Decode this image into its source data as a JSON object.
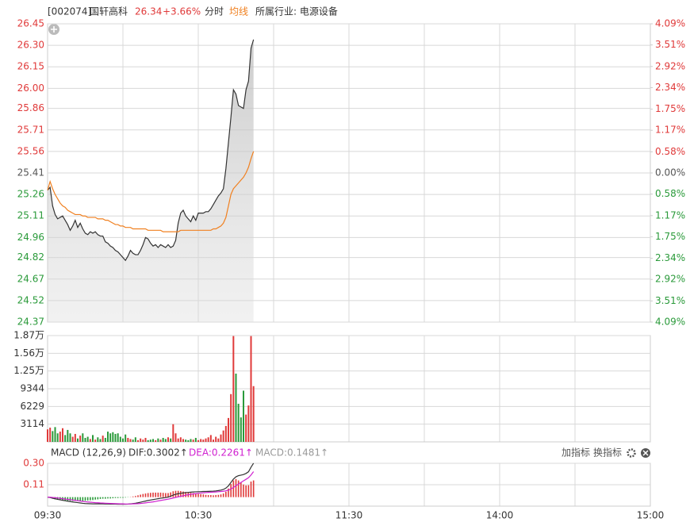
{
  "header": {
    "code": "[002074]",
    "name": "国轩高科",
    "price": 26.34,
    "change": "+3.66%",
    "industry": "所属行业: 电源设备"
  },
  "toolbar": [
    "加指标",
    "换指标"
  ],
  "chart_data": [
    {
      "type": "line",
      "xlim": [
        0,
        240
      ],
      "xticks": [
        {
          "value": 0,
          "label": "09:30"
        },
        {
          "value": 30,
          "label": null
        },
        {
          "value": 60,
          "label": "10:30"
        },
        {
          "value": 90,
          "label": null
        },
        {
          "value": 120,
          "label": "11:30"
        },
        {
          "value": 150,
          "label": null
        },
        {
          "value": 180,
          "label": "14:00"
        },
        {
          "value": 210,
          "label": null
        },
        {
          "value": 240,
          "label": "15:00"
        }
      ],
      "ylim": [
        24.37,
        26.45
      ],
      "yticks": [
        26.45,
        {
          "value": 26.3,
          "label": "26.30"
        },
        26.15,
        {
          "value": 26.0,
          "label": "26.00"
        },
        25.86,
        25.71,
        25.56,
        25.41,
        25.26,
        25.11,
        24.96,
        24.82,
        24.67,
        24.52,
        24.37
      ],
      "y2lim": [
        -4.09,
        4.09
      ],
      "y2ticks": [
        {
          "value": 4.09,
          "label": "4.09%"
        },
        {
          "value": 3.51,
          "label": "3.51%"
        },
        {
          "value": 2.92,
          "label": "2.92%"
        },
        {
          "value": 2.34,
          "label": "2.34%"
        },
        {
          "value": 1.75,
          "label": "1.75%"
        },
        {
          "value": 1.17,
          "label": "1.17%"
        },
        {
          "value": 0.58,
          "label": "0.58%"
        },
        {
          "value": 0,
          "label": "0.00%"
        },
        {
          "value": -0.58,
          "label": "0.58%"
        },
        {
          "value": -1.17,
          "label": "1.17%"
        },
        {
          "value": -1.75,
          "label": "1.75%"
        },
        {
          "value": -2.34,
          "label": "2.34%"
        },
        {
          "value": -2.92,
          "label": "2.92%"
        },
        {
          "value": -3.51,
          "label": "3.51%"
        },
        {
          "value": -4.09,
          "label": "4.09%"
        }
      ],
      "up_color": "#e03a3a",
      "down_color": "#2a9a3a",
      "flat_color": "#555555",
      "x": [
        0,
        1,
        2,
        3,
        4,
        5,
        6,
        7,
        8,
        9,
        10,
        11,
        12,
        13,
        14,
        15,
        16,
        17,
        18,
        19,
        20,
        21,
        22,
        23,
        24,
        25,
        26,
        27,
        28,
        29,
        30,
        31,
        32,
        33,
        34,
        35,
        36,
        37,
        38,
        39,
        40,
        41,
        42,
        43,
        44,
        45,
        46,
        47,
        48,
        49,
        50,
        51,
        52,
        53,
        54,
        55,
        56,
        57,
        58,
        59,
        60,
        61,
        62,
        63,
        64,
        65,
        66,
        67,
        68,
        69,
        70,
        71,
        72,
        73,
        74,
        75,
        76,
        77,
        78,
        79,
        80,
        81,
        82
      ],
      "series": [
        {
          "name": "分时",
          "color": "#333333",
          "values": [
            25.29,
            25.31,
            25.18,
            25.12,
            25.09,
            25.1,
            25.11,
            25.08,
            25.05,
            25.01,
            25.04,
            25.08,
            25.03,
            25.06,
            25.02,
            24.99,
            24.98,
            25.0,
            24.99,
            25.0,
            24.98,
            24.97,
            24.97,
            24.93,
            24.92,
            24.9,
            24.89,
            24.87,
            24.86,
            24.84,
            24.82,
            24.8,
            24.83,
            24.87,
            24.85,
            24.84,
            24.84,
            24.87,
            24.91,
            24.96,
            24.95,
            24.92,
            24.9,
            24.91,
            24.89,
            24.91,
            24.9,
            24.89,
            24.91,
            24.89,
            24.9,
            24.94,
            25.06,
            25.13,
            25.15,
            25.11,
            25.09,
            25.07,
            25.11,
            25.08,
            25.13,
            25.13,
            25.13,
            25.14,
            25.14,
            25.16,
            25.19,
            25.22,
            25.25,
            25.27,
            25.3,
            25.44,
            25.62,
            25.8,
            25.99,
            25.96,
            25.88,
            25.87,
            25.86,
            25.99,
            26.05,
            26.28,
            26.34
          ]
        },
        {
          "name": "均线",
          "color": "#f08020",
          "values": [
            25.29,
            25.35,
            25.3,
            25.26,
            25.23,
            25.2,
            25.18,
            25.17,
            25.15,
            25.14,
            25.13,
            25.12,
            25.12,
            25.12,
            25.11,
            25.11,
            25.1,
            25.1,
            25.1,
            25.1,
            25.09,
            25.09,
            25.09,
            25.08,
            25.08,
            25.07,
            25.06,
            25.05,
            25.05,
            25.04,
            25.04,
            25.03,
            25.03,
            25.03,
            25.02,
            25.02,
            25.02,
            25.02,
            25.02,
            25.02,
            25.01,
            25.01,
            25.01,
            25.01,
            25.01,
            25.01,
            25.0,
            25.0,
            25.0,
            25.0,
            25.0,
            25.0,
            25.0,
            25.01,
            25.01,
            25.01,
            25.01,
            25.01,
            25.01,
            25.01,
            25.01,
            25.01,
            25.01,
            25.01,
            25.01,
            25.01,
            25.02,
            25.02,
            25.03,
            25.04,
            25.06,
            25.1,
            25.18,
            25.26,
            25.3,
            25.32,
            25.34,
            25.36,
            25.38,
            25.41,
            25.45,
            25.51,
            25.56
          ]
        }
      ]
    },
    {
      "type": "bar",
      "ylim": [
        0,
        18686
      ],
      "yticks": [
        {
          "value": 18686,
          "label": "1.87万"
        },
        {
          "value": 15572,
          "label": "1.56万"
        },
        {
          "value": 12458,
          "label": "1.25万"
        },
        9344,
        6229,
        3114
      ],
      "values": [
        2200,
        2500,
        1900,
        2600,
        1500,
        1800,
        2400,
        1200,
        2100,
        1500,
        900,
        1400,
        600,
        1100,
        1500,
        700,
        900,
        500,
        1200,
        400,
        800,
        500,
        1100,
        700,
        1800,
        1500,
        1700,
        1400,
        1500,
        900,
        600,
        1300,
        700,
        500,
        400,
        800,
        300,
        600,
        400,
        700,
        300,
        400,
        500,
        300,
        600,
        400,
        700,
        500,
        800,
        600,
        3100,
        1500,
        600,
        800,
        500,
        400,
        300,
        500,
        400,
        700,
        300,
        500,
        400,
        600,
        800,
        1200,
        400,
        900,
        600,
        1300,
        2000,
        2800,
        4200,
        8400,
        18600,
        12000,
        6700,
        4300,
        9000,
        4800,
        6400,
        18600,
        9800
      ]
    },
    {
      "type": "macd",
      "title": "MACD (12,26,9)",
      "ylim": [
        -0.08,
        0.3
      ],
      "yticks": [
        {
          "value": 0.3,
          "label": "0.30"
        },
        0.11
      ],
      "series": [
        {
          "name": "DIF:0.3002↑",
          "color": "#333333",
          "values": [
            0,
            -0.004,
            -0.01,
            -0.015,
            -0.02,
            -0.024,
            -0.028,
            -0.032,
            -0.036,
            -0.04,
            -0.043,
            -0.046,
            -0.049,
            -0.052,
            -0.055,
            -0.057,
            -0.058,
            -0.059,
            -0.06,
            -0.06,
            -0.06,
            -0.06,
            -0.06,
            -0.061,
            -0.061,
            -0.062,
            -0.062,
            -0.062,
            -0.063,
            -0.063,
            -0.063,
            -0.063,
            -0.062,
            -0.06,
            -0.057,
            -0.054,
            -0.05,
            -0.045,
            -0.04,
            -0.035,
            -0.03,
            -0.026,
            -0.022,
            -0.018,
            -0.014,
            -0.01,
            -0.007,
            -0.004,
            0,
            0.008,
            0.018,
            0.025,
            0.03,
            0.034,
            0.037,
            0.04,
            0.042,
            0.044,
            0.046,
            0.047,
            0.048,
            0.049,
            0.05,
            0.05,
            0.051,
            0.052,
            0.053,
            0.055,
            0.058,
            0.062,
            0.068,
            0.08,
            0.1,
            0.13,
            0.16,
            0.18,
            0.19,
            0.195,
            0.2,
            0.21,
            0.225,
            0.265,
            0.3002
          ]
        },
        {
          "name": "DEA:0.2261↑",
          "color": "#d020d0",
          "values": [
            0,
            -0.001,
            -0.003,
            -0.005,
            -0.008,
            -0.011,
            -0.014,
            -0.017,
            -0.02,
            -0.023,
            -0.026,
            -0.029,
            -0.032,
            -0.035,
            -0.038,
            -0.041,
            -0.043,
            -0.045,
            -0.047,
            -0.049,
            -0.05,
            -0.052,
            -0.053,
            -0.054,
            -0.055,
            -0.056,
            -0.057,
            -0.058,
            -0.059,
            -0.06,
            -0.06,
            -0.061,
            -0.061,
            -0.061,
            -0.06,
            -0.059,
            -0.058,
            -0.056,
            -0.054,
            -0.051,
            -0.048,
            -0.045,
            -0.042,
            -0.038,
            -0.034,
            -0.03,
            -0.026,
            -0.022,
            -0.018,
            -0.013,
            -0.008,
            -0.003,
            0.002,
            0.007,
            0.012,
            0.017,
            0.021,
            0.025,
            0.028,
            0.031,
            0.034,
            0.036,
            0.038,
            0.04,
            0.042,
            0.043,
            0.045,
            0.046,
            0.048,
            0.05,
            0.052,
            0.056,
            0.062,
            0.072,
            0.086,
            0.1,
            0.116,
            0.13,
            0.144,
            0.158,
            0.172,
            0.196,
            0.2261
          ]
        },
        {
          "name": "MACD:0.1481↑",
          "color": "#999999",
          "values": [
            0,
            -0.006,
            -0.014,
            -0.02,
            -0.024,
            -0.026,
            -0.028,
            -0.03,
            -0.032,
            -0.034,
            -0.034,
            -0.034,
            -0.034,
            -0.034,
            -0.034,
            -0.032,
            -0.03,
            -0.028,
            -0.026,
            -0.022,
            -0.02,
            -0.016,
            -0.014,
            -0.014,
            -0.012,
            -0.012,
            -0.01,
            -0.008,
            -0.008,
            -0.006,
            -0.006,
            -0.004,
            -0.002,
            0.002,
            0.006,
            0.01,
            0.016,
            0.022,
            0.028,
            0.032,
            0.036,
            0.038,
            0.04,
            0.04,
            0.04,
            0.04,
            0.038,
            0.036,
            0.036,
            0.042,
            0.052,
            0.056,
            0.056,
            0.054,
            0.05,
            0.046,
            0.042,
            0.038,
            0.036,
            0.032,
            0.028,
            0.026,
            0.024,
            0.02,
            0.018,
            0.018,
            0.016,
            0.018,
            0.02,
            0.024,
            0.032,
            0.048,
            0.076,
            0.116,
            0.148,
            0.16,
            0.148,
            0.13,
            0.112,
            0.104,
            0.106,
            0.138,
            0.1481
          ]
        }
      ]
    }
  ]
}
